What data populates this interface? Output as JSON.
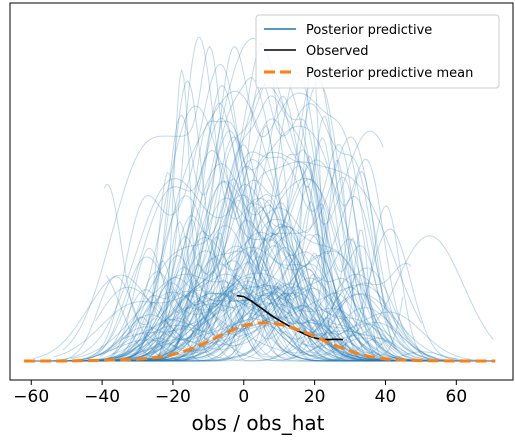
{
  "chart_data": {
    "type": "line",
    "title": "",
    "xlabel": "obs / obs_hat",
    "ylabel": "",
    "xlim": [
      -66,
      76
    ],
    "ylim": [
      0,
      1.0
    ],
    "x_ticks": [
      -60,
      -40,
      -20,
      0,
      20,
      40,
      60
    ],
    "x_tick_labels": [
      "−60",
      "−40",
      "−20",
      "0",
      "20",
      "40",
      "60"
    ],
    "y_ticks": [],
    "grid": false,
    "legend_position": "top-right",
    "colors": {
      "posterior_predictive": "#1f77b4",
      "observed": "#000000",
      "posterior_predictive_mean": "#ff7f0e"
    },
    "series": [
      {
        "name": "Posterior predictive",
        "style": "thin translucent lines (many samples)",
        "support": [
          -62,
          71
        ],
        "peak_range": [
          0.2,
          0.98
        ],
        "sample_count": 120
      },
      {
        "name": "Observed",
        "style": "solid",
        "x": [
          -2,
          0,
          2,
          4,
          6,
          8,
          10,
          12,
          14,
          16,
          18,
          20,
          22,
          24,
          26,
          28
        ],
        "y": [
          0.193,
          0.19,
          0.178,
          0.163,
          0.148,
          0.133,
          0.12,
          0.108,
          0.096,
          0.085,
          0.076,
          0.068,
          0.063,
          0.063,
          0.064,
          0.063
        ]
      },
      {
        "name": "Posterior predictive mean",
        "style": "dashed",
        "x": [
          -62,
          -50,
          -40,
          -30,
          -24,
          -20,
          -16,
          -12,
          -8,
          -4,
          0,
          4,
          8,
          12,
          16,
          20,
          24,
          28,
          32,
          36,
          40,
          46,
          52,
          60,
          71
        ],
        "y": [
          0.0,
          0.0,
          0.002,
          0.005,
          0.011,
          0.019,
          0.031,
          0.048,
          0.068,
          0.088,
          0.104,
          0.112,
          0.112,
          0.104,
          0.09,
          0.072,
          0.054,
          0.037,
          0.022,
          0.012,
          0.006,
          0.002,
          0.001,
          0.0,
          0.0
        ]
      }
    ]
  }
}
